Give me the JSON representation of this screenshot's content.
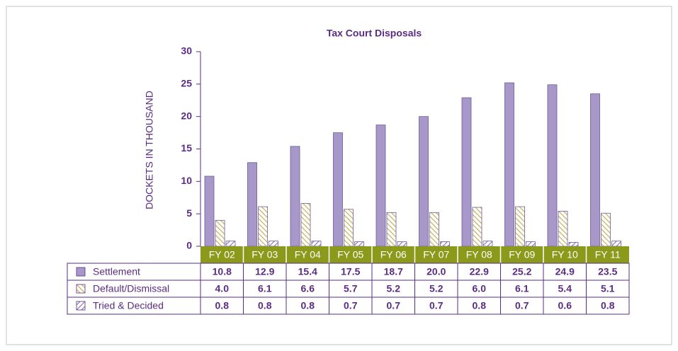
{
  "chart_data": {
    "type": "bar",
    "title": "Tax Court Disposals",
    "y_label": "DOCKETS IN THOUSAND",
    "categories": [
      "FY 02",
      "FY 03",
      "FY 04",
      "FY 05",
      "FY 06",
      "FY 07",
      "FY 08",
      "FY 09",
      "FY 10",
      "FY 11"
    ],
    "series": [
      {
        "name": "Settlement",
        "color": "#a898c9",
        "pattern": "solid",
        "values": [
          10.8,
          12.9,
          15.4,
          17.5,
          18.7,
          20.0,
          22.9,
          25.2,
          24.9,
          23.5
        ],
        "value_labels": [
          "10.8",
          "12.9",
          "15.4",
          "17.5",
          "18.7",
          "20.0",
          "22.9",
          "25.2",
          "24.9",
          "23.5"
        ]
      },
      {
        "name": "Default/Dismissal",
        "color": "#c8b25a",
        "pattern": "hatch",
        "values": [
          4.0,
          6.1,
          6.6,
          5.7,
          5.2,
          5.2,
          6.0,
          6.1,
          5.4,
          5.1
        ],
        "value_labels": [
          "4.0",
          "6.1",
          "6.6",
          "5.7",
          "5.2",
          "5.2",
          "6.0",
          "6.1",
          "5.4",
          "5.1"
        ]
      },
      {
        "name": "Tried & Decided",
        "color": "#8f7cb8",
        "pattern": "hatch-reverse",
        "values": [
          0.8,
          0.8,
          0.8,
          0.7,
          0.7,
          0.7,
          0.8,
          0.7,
          0.6,
          0.8
        ],
        "value_labels": [
          "0.8",
          "0.8",
          "0.8",
          "0.7",
          "0.7",
          "0.7",
          "0.8",
          "0.7",
          "0.6",
          "0.8"
        ]
      }
    ],
    "ylim": [
      0,
      30
    ],
    "yticks": [
      0,
      5,
      10,
      15,
      20,
      25,
      30
    ],
    "grid": false,
    "category_band_color": "#8c9a1b"
  }
}
